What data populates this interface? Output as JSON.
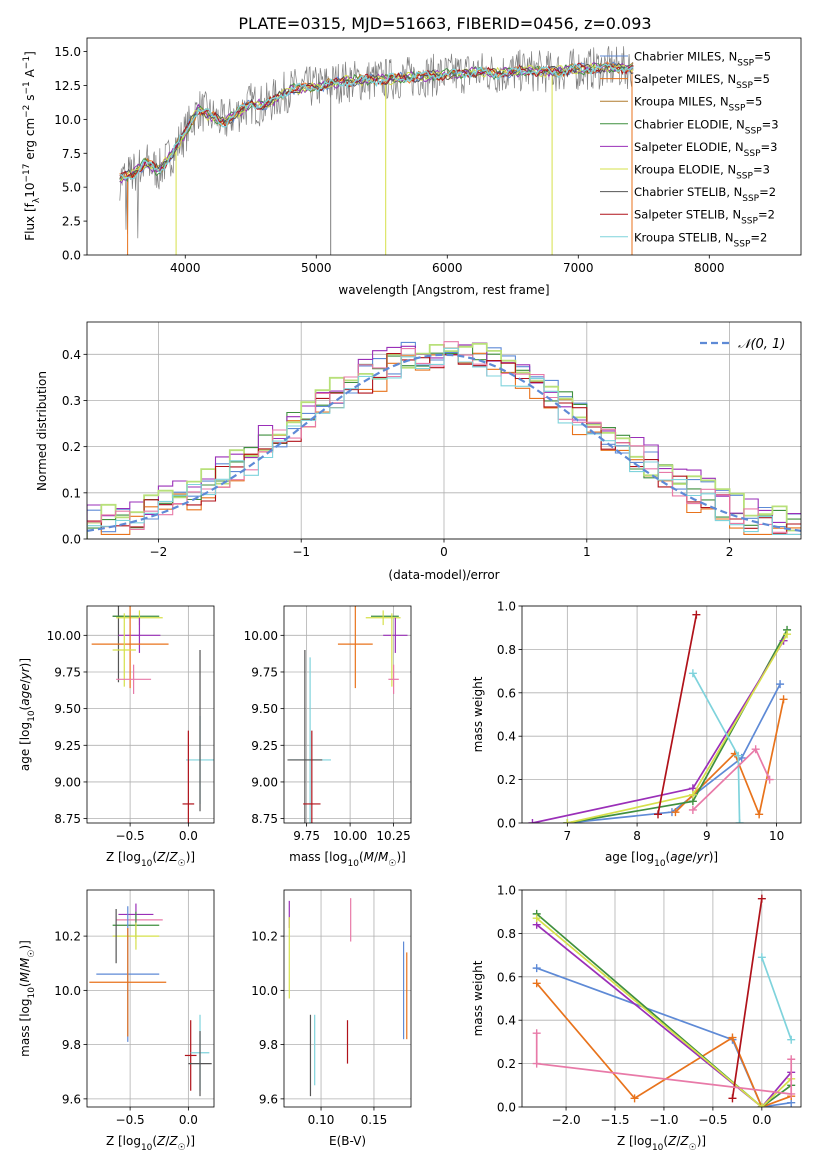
{
  "title": "PLATE=0315, MJD=51663, FIBERID=0456, z=0.093",
  "colors": {
    "chabrier_miles": "#5e8ad6",
    "salpeter_miles": "#e8731c",
    "kroupa_miles": "#b07c2e",
    "chabrier_elodie": "#3f8f3f",
    "salpeter_elodie": "#9a2fb8",
    "kroupa_elodie": "#d6e04a",
    "chabrier_stelib": "#555555",
    "salpeter_stelib": "#b0121a",
    "kroupa_stelib": "#7fd3dc",
    "pink": "#e87aa8",
    "lightgreen": "#b8e07a",
    "normal_curve": "#5e8ad6"
  },
  "chart_data": [
    {
      "type": "line",
      "panel": "spectrum",
      "title": "PLATE=0315, MJD=51663, FIBERID=0456, z=0.093",
      "xlabel": "wavelength [Angstrom, rest frame]",
      "ylabel": "Flux [f_λ 10^-17 erg cm^-2 s^-1 A^-1]",
      "xlim": [
        3250,
        8700
      ],
      "ylim": [
        0,
        16
      ],
      "xticks": [
        4000,
        5000,
        6000,
        7000,
        8000
      ],
      "yticks": [
        0.0,
        2.5,
        5.0,
        7.5,
        10.0,
        12.5,
        15.0
      ],
      "xtick_labels": [
        "4000",
        "5000",
        "6000",
        "7000",
        "8000"
      ],
      "ytick_labels": [
        "0.0",
        "2.5",
        "5.0",
        "7.5",
        "10.0",
        "12.5",
        "15.0"
      ],
      "grid": false,
      "legend_loc": "right",
      "series": [
        {
          "name": "Chabrier MILES, N_SSP=5",
          "color": "#5e8ad6"
        },
        {
          "name": "Salpeter MILES, N_SSP=5",
          "color": "#e8731c"
        },
        {
          "name": "Kroupa MILES, N_SSP=5",
          "color": "#b07c2e"
        },
        {
          "name": "Chabrier ELODIE, N_SSP=3",
          "color": "#3f8f3f"
        },
        {
          "name": "Salpeter ELODIE, N_SSP=3",
          "color": "#9a2fb8"
        },
        {
          "name": "Kroupa ELODIE, N_SSP=3",
          "color": "#d6e04a"
        },
        {
          "name": "Chabrier STELIB, N_SSP=2",
          "color": "#555555"
        },
        {
          "name": "Salpeter STELIB, N_SSP=2",
          "color": "#b0121a"
        },
        {
          "name": "Kroupa STELIB, N_SSP=2",
          "color": "#7fd3dc"
        }
      ],
      "legend_labels": [
        {
          "pre": "Chabrier MILES, N",
          "sub": "SSP",
          "post": "=5"
        },
        {
          "pre": "Salpeter MILES, N",
          "sub": "SSP",
          "post": "=5"
        },
        {
          "pre": "Kroupa MILES, N",
          "sub": "SSP",
          "post": "=5"
        },
        {
          "pre": "Chabrier ELODIE, N",
          "sub": "SSP",
          "post": "=3"
        },
        {
          "pre": "Salpeter ELODIE, N",
          "sub": "SSP",
          "post": "=3"
        },
        {
          "pre": "Kroupa ELODIE, N",
          "sub": "SSP",
          "post": "=3"
        },
        {
          "pre": "Chabrier STELIB, N",
          "sub": "SSP",
          "post": "=2"
        },
        {
          "pre": "Salpeter STELIB, N",
          "sub": "SSP",
          "post": "=2"
        },
        {
          "pre": "Kroupa STELIB, N",
          "sub": "SSP",
          "post": "=2"
        }
      ],
      "data_envelope": {
        "x": [
          3500,
          3600,
          3700,
          3800,
          3900,
          4000,
          4100,
          4200,
          4300,
          4400,
          4500,
          4600,
          4700,
          4800,
          5000,
          5200,
          5400,
          5600,
          5800,
          6000,
          6200,
          6400,
          6600,
          6800,
          7000,
          7200,
          7400
        ],
        "y": [
          5.6,
          6.0,
          6.8,
          6.2,
          7.5,
          9.0,
          10.8,
          10.2,
          9.8,
          10.5,
          11.2,
          11.0,
          11.6,
          12.2,
          12.4,
          12.8,
          12.9,
          13.0,
          13.2,
          13.3,
          13.5,
          13.4,
          13.6,
          13.5,
          13.7,
          13.8,
          13.8
        ]
      }
    },
    {
      "type": "line",
      "panel": "residuals",
      "xlabel": "(data-model)/error",
      "ylabel": "Normed distribution",
      "xlim": [
        -2.5,
        2.5
      ],
      "ylim": [
        0,
        0.47
      ],
      "xticks": [
        -2,
        -1,
        0,
        1,
        2
      ],
      "yticks": [
        0.0,
        0.1,
        0.2,
        0.3,
        0.4
      ],
      "xtick_labels": [
        "−2",
        "−1",
        "0",
        "1",
        "2"
      ],
      "ytick_labels": [
        "0.0",
        "0.1",
        "0.2",
        "0.3",
        "0.4"
      ],
      "grid": true,
      "legend_loc": "upper right",
      "legend_text": "𝒩(0, 1)",
      "series": [
        {
          "name": "𝒩(0, 1)",
          "kind": "normal_pdf",
          "mu": 0,
          "sigma": 1,
          "color": "#5e8ad6",
          "dashed": true
        }
      ],
      "histograms": [
        {
          "color": "#5e8ad6",
          "offset": 0.01
        },
        {
          "color": "#e8731c",
          "offset": -0.015
        },
        {
          "color": "#3f8f3f",
          "offset": 0.005
        },
        {
          "color": "#9a2fb8",
          "offset": 0.02
        },
        {
          "color": "#b8e07a",
          "offset": 0.012
        },
        {
          "color": "#b0121a",
          "offset": -0.005
        },
        {
          "color": "#e87aa8",
          "offset": 0.0
        },
        {
          "color": "#7fd3dc",
          "offset": -0.01
        }
      ]
    },
    {
      "type": "scatter",
      "panel": "Z-age",
      "xlabel": "Z [log10(Z/Z☉)]",
      "ylabel": "age  [log10(age/yr)]",
      "xlim": [
        -0.87,
        0.22
      ],
      "ylim": [
        8.72,
        10.2
      ],
      "xticks": [
        -0.5,
        0.0
      ],
      "yticks": [
        8.75,
        9.0,
        9.25,
        9.5,
        9.75,
        10.0
      ],
      "xtick_labels": [
        "−0.5",
        "0.0"
      ],
      "ytick_labels": [
        "8.75",
        "9.00",
        "9.25",
        "9.50",
        "9.75",
        "10.00"
      ],
      "grid": true,
      "points": [
        {
          "x": -0.6,
          "y": 10.13,
          "xerr": 0.05,
          "yerr": 0.45,
          "color": "#555555"
        },
        {
          "x": -0.45,
          "y": 10.13,
          "xerr": 0.2,
          "yerr": 0.0,
          "color": "#3f8f3f"
        },
        {
          "x": -0.42,
          "y": 10.12,
          "xerr": 0.2,
          "yerr": 0.05,
          "color": "#d6e04a"
        },
        {
          "x": -0.42,
          "y": 10.0,
          "xerr": 0.18,
          "yerr": 0.12,
          "color": "#9a2fb8"
        },
        {
          "x": -0.5,
          "y": 9.94,
          "xerr": 0.33,
          "yerr": 0.3,
          "color": "#e8731c"
        },
        {
          "x": -0.55,
          "y": 9.9,
          "xerr": 0.1,
          "yerr": 0.25,
          "color": "#d6e04a"
        },
        {
          "x": -0.47,
          "y": 9.7,
          "xerr": 0.15,
          "yerr": 0.1,
          "color": "#e87aa8"
        },
        {
          "x": 0.1,
          "y": 9.15,
          "xerr": 0.12,
          "yerr": 0.3,
          "color": "#7fd3dc"
        },
        {
          "x": 0.1,
          "y": 9.35,
          "xerr": 0.0,
          "yerr": 0.55,
          "color": "#555555"
        },
        {
          "x": 0.0,
          "y": 8.85,
          "xerr": 0.05,
          "yerr": 0.5,
          "color": "#b0121a"
        }
      ]
    },
    {
      "type": "scatter",
      "panel": "mass-age",
      "xlabel": "mass [log10(M/M☉)]",
      "ylabel": "",
      "xlim": [
        9.62,
        10.35
      ],
      "ylim": [
        8.72,
        10.2
      ],
      "xticks": [
        9.75,
        10.0,
        10.25
      ],
      "yticks": [
        8.75,
        9.0,
        9.25,
        9.5,
        9.75,
        10.0
      ],
      "xtick_labels": [
        "9.75",
        "10.00",
        "10.25"
      ],
      "ytick_labels": [
        "8.75",
        "9.00",
        "9.25",
        "9.50",
        "9.75",
        "10.00"
      ],
      "grid": true,
      "points": [
        {
          "x": 10.2,
          "y": 10.13,
          "xerr": 0.08,
          "yerr": 0.0,
          "color": "#3f8f3f"
        },
        {
          "x": 10.19,
          "y": 10.12,
          "xerr": 0.1,
          "yerr": 0.05,
          "color": "#d6e04a"
        },
        {
          "x": 10.26,
          "y": 10.0,
          "xerr": 0.07,
          "yerr": 0.12,
          "color": "#9a2fb8"
        },
        {
          "x": 10.03,
          "y": 9.94,
          "xerr": 0.1,
          "yerr": 0.3,
          "color": "#e8731c"
        },
        {
          "x": 10.24,
          "y": 9.9,
          "xerr": 0.0,
          "yerr": 0.25,
          "color": "#d6e04a"
        },
        {
          "x": 10.25,
          "y": 9.7,
          "xerr": 0.03,
          "yerr": 0.1,
          "color": "#e87aa8"
        },
        {
          "x": 9.77,
          "y": 9.15,
          "xerr": 0.12,
          "yerr": 0.7,
          "color": "#7fd3dc"
        },
        {
          "x": 9.74,
          "y": 9.15,
          "xerr": 0.1,
          "yerr": 0.75,
          "color": "#555555"
        },
        {
          "x": 9.78,
          "y": 8.85,
          "xerr": 0.05,
          "yerr": 0.5,
          "color": "#b0121a"
        }
      ]
    },
    {
      "type": "line",
      "panel": "age-massweight",
      "xlabel": "age  [log10(age/yr)]",
      "ylabel": "mass weight",
      "xlim": [
        6.35,
        10.35
      ],
      "ylim": [
        0,
        1
      ],
      "xticks": [
        7,
        8,
        9,
        10
      ],
      "yticks": [
        0.0,
        0.2,
        0.4,
        0.6,
        0.8,
        1.0
      ],
      "xtick_labels": [
        "7",
        "8",
        "9",
        "10"
      ],
      "ytick_labels": [
        "0.0",
        "0.2",
        "0.4",
        "0.6",
        "0.8",
        "1.0"
      ],
      "grid": true,
      "series": [
        {
          "name": "",
          "color": "#5e8ad6",
          "x": [
            7.0,
            8.5,
            9.5,
            10.05
          ],
          "y": [
            0.0,
            0.05,
            0.3,
            0.64
          ]
        },
        {
          "name": "",
          "color": "#e8731c",
          "x": [
            8.55,
            9.4,
            9.75,
            10.1
          ],
          "y": [
            0.05,
            0.32,
            0.04,
            0.57
          ]
        },
        {
          "name": "",
          "color": "#3f8f3f",
          "x": [
            7.0,
            8.8,
            10.15
          ],
          "y": [
            0.0,
            0.1,
            0.89
          ]
        },
        {
          "name": "",
          "color": "#9a2fb8",
          "x": [
            6.5,
            8.8,
            10.1
          ],
          "y": [
            0.0,
            0.16,
            0.84
          ]
        },
        {
          "name": "",
          "color": "#d6e04a",
          "x": [
            7.0,
            8.8,
            10.15
          ],
          "y": [
            0.0,
            0.13,
            0.87
          ]
        },
        {
          "name": "",
          "color": "#b0121a",
          "x": [
            8.3,
            8.85
          ],
          "y": [
            0.04,
            0.96
          ]
        },
        {
          "name": "",
          "color": "#7fd3dc",
          "x": [
            8.8,
            9.45,
            9.47
          ],
          "y": [
            0.69,
            0.31,
            0.0
          ]
        },
        {
          "name": "",
          "color": "#e87aa8",
          "x": [
            8.8,
            9.7,
            9.9
          ],
          "y": [
            0.06,
            0.34,
            0.2
          ]
        }
      ]
    },
    {
      "type": "scatter",
      "panel": "Z-mass",
      "xlabel": "Z [log10(Z/Z☉)]",
      "ylabel": "mass [log10(M/M☉)]",
      "xlim": [
        -0.87,
        0.22
      ],
      "ylim": [
        9.57,
        10.37
      ],
      "xticks": [
        -0.5,
        0.0
      ],
      "yticks": [
        9.6,
        9.8,
        10.0,
        10.2
      ],
      "xtick_labels": [
        "−0.5",
        "0.0"
      ],
      "ytick_labels": [
        "9.6",
        "9.8",
        "10.0",
        "10.2"
      ],
      "grid": true,
      "points": [
        {
          "x": -0.45,
          "y": 10.28,
          "xerr": 0.15,
          "yerr": 0.04,
          "color": "#9a2fb8"
        },
        {
          "x": -0.42,
          "y": 10.26,
          "xerr": 0.2,
          "yerr": 0.0,
          "color": "#e87aa8"
        },
        {
          "x": -0.45,
          "y": 10.24,
          "xerr": 0.2,
          "yerr": 0.05,
          "color": "#3f8f3f"
        },
        {
          "x": -0.45,
          "y": 10.2,
          "xerr": 0.2,
          "yerr": 0.05,
          "color": "#d6e04a"
        },
        {
          "x": -0.62,
          "y": 10.2,
          "xerr": 0.0,
          "yerr": 0.1,
          "color": "#555555"
        },
        {
          "x": -0.52,
          "y": 10.06,
          "xerr": 0.27,
          "yerr": 0.25,
          "color": "#5e8ad6"
        },
        {
          "x": -0.52,
          "y": 10.03,
          "xerr": 0.33,
          "yerr": 0.2,
          "color": "#e8731c"
        },
        {
          "x": 0.02,
          "y": 9.76,
          "xerr": 0.05,
          "yerr": 0.13,
          "color": "#b0121a"
        },
        {
          "x": 0.1,
          "y": 9.77,
          "xerr": 0.08,
          "yerr": 0.14,
          "color": "#7fd3dc"
        },
        {
          "x": 0.1,
          "y": 9.73,
          "xerr": 0.1,
          "yerr": 0.12,
          "color": "#555555"
        }
      ]
    },
    {
      "type": "scatter",
      "panel": "EBV-mass",
      "xlabel": "E(B-V)",
      "ylabel": "",
      "xlim": [
        0.065,
        0.185
      ],
      "ylim": [
        9.57,
        10.37
      ],
      "xticks": [
        0.1,
        0.15
      ],
      "yticks": [
        9.6,
        9.8,
        10.0,
        10.2
      ],
      "xtick_labels": [
        "0.10",
        "0.15"
      ],
      "ytick_labels": [
        "9.6",
        "9.8",
        "10.0",
        "10.2"
      ],
      "grid": true,
      "points": [
        {
          "x": 0.07,
          "y": 10.28,
          "yerr": 0.05,
          "color": "#9a2fb8"
        },
        {
          "x": 0.07,
          "y": 10.12,
          "yerr": 0.15,
          "color": "#d6e04a"
        },
        {
          "x": 0.128,
          "y": 10.26,
          "yerr": 0.08,
          "color": "#e87aa8"
        },
        {
          "x": 0.09,
          "y": 9.76,
          "yerr": 0.15,
          "color": "#555555"
        },
        {
          "x": 0.094,
          "y": 9.78,
          "yerr": 0.13,
          "color": "#7fd3dc"
        },
        {
          "x": 0.125,
          "y": 9.81,
          "yerr": 0.08,
          "color": "#b0121a"
        },
        {
          "x": 0.178,
          "y": 10.0,
          "yerr": 0.18,
          "color": "#5e8ad6"
        },
        {
          "x": 0.181,
          "y": 9.98,
          "yerr": 0.16,
          "color": "#e8731c"
        }
      ]
    },
    {
      "type": "line",
      "panel": "Z-massweight",
      "xlabel": "Z [log10(Z/Z☉)]",
      "ylabel": "mass weight",
      "xlim": [
        -2.45,
        0.4
      ],
      "ylim": [
        0,
        1
      ],
      "xticks": [
        -2.0,
        -1.5,
        -1.0,
        -0.5,
        0.0
      ],
      "yticks": [
        0.0,
        0.2,
        0.4,
        0.6,
        0.8,
        1.0
      ],
      "xtick_labels": [
        "−2.0",
        "−1.5",
        "−1.0",
        "−0.5",
        "0.0"
      ],
      "ytick_labels": [
        "0.0",
        "0.2",
        "0.4",
        "0.6",
        "0.8",
        "1.0"
      ],
      "grid": true,
      "series": [
        {
          "name": "",
          "color": "#5e8ad6",
          "x": [
            -2.3,
            -0.3,
            0.0,
            0.3
          ],
          "y": [
            0.64,
            0.31,
            0.0,
            0.02
          ]
        },
        {
          "name": "",
          "color": "#e8731c",
          "x": [
            -2.3,
            -1.3,
            -0.3,
            0.0,
            0.3
          ],
          "y": [
            0.57,
            0.04,
            0.32,
            0.0,
            0.05
          ]
        },
        {
          "name": "",
          "color": "#3f8f3f",
          "x": [
            -2.3,
            0.0,
            0.3
          ],
          "y": [
            0.89,
            0.0,
            0.1
          ]
        },
        {
          "name": "",
          "color": "#9a2fb8",
          "x": [
            -2.3,
            0.0,
            0.3
          ],
          "y": [
            0.84,
            0.0,
            0.16
          ]
        },
        {
          "name": "",
          "color": "#d6e04a",
          "x": [
            -2.3,
            0.0,
            0.3
          ],
          "y": [
            0.87,
            0.0,
            0.13
          ]
        },
        {
          "name": "",
          "color": "#b0121a",
          "x": [
            -0.3,
            0.0
          ],
          "y": [
            0.04,
            0.96
          ]
        },
        {
          "name": "",
          "color": "#7fd3dc",
          "x": [
            0.0,
            0.3
          ],
          "y": [
            0.69,
            0.31
          ]
        },
        {
          "name": "",
          "color": "#e87aa8",
          "x": [
            -2.3,
            -2.3,
            0.3,
            0.3
          ],
          "y": [
            0.34,
            0.2,
            0.06,
            0.22
          ]
        }
      ]
    }
  ]
}
